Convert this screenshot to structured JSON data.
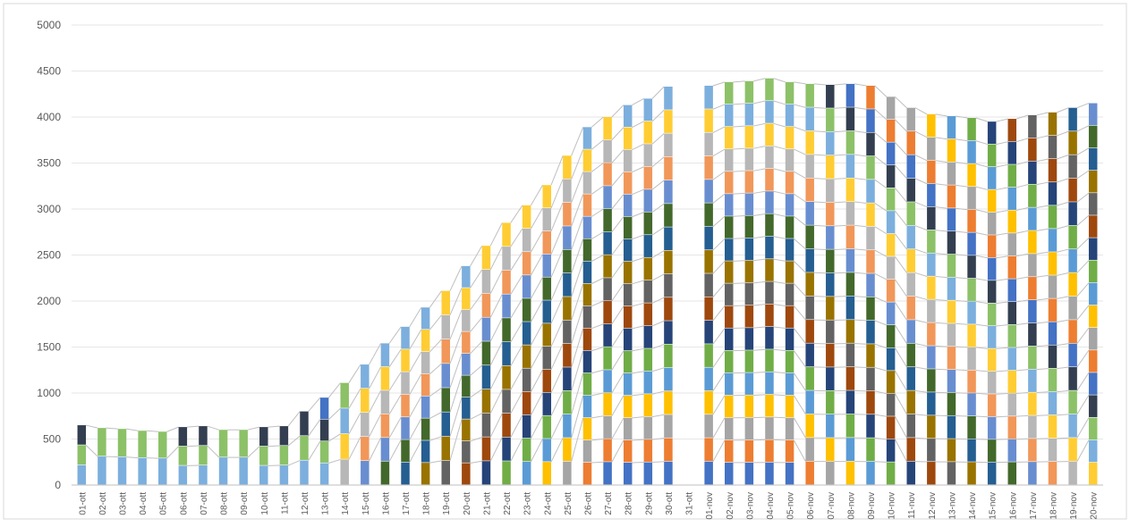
{
  "chart_data": {
    "type": "bar",
    "stacked": true,
    "title": "",
    "xlabel": "",
    "ylabel": "",
    "ylim": [
      0,
      5000
    ],
    "yticks": [
      0,
      500,
      1000,
      1500,
      2000,
      2500,
      3000,
      3500,
      4000,
      4500,
      5000
    ],
    "grid": true,
    "legend": "none",
    "connector_lines": true,
    "categories": [
      "01-ott",
      "02-ott",
      "03-ott",
      "04-ott",
      "05-ott",
      "06-ott",
      "07-ott",
      "08-ott",
      "09-ott",
      "10-ott",
      "11-ott",
      "12-ott",
      "13-ott",
      "14-ott",
      "15-ott",
      "16-ott",
      "17-ott",
      "18-ott",
      "19-ott",
      "20-ott",
      "21-ott",
      "22-ott",
      "23-ott",
      "24-ott",
      "25-ott",
      "26-ott",
      "27-ott",
      "28-ott",
      "29-ott",
      "30-ott",
      "31-ott",
      "01-nov",
      "02-nov",
      "03-nov",
      "04-nov",
      "05-nov",
      "06-nov",
      "07-nov",
      "08-nov",
      "09-nov",
      "10-nov",
      "11-nov",
      "12-nov",
      "13-nov",
      "14-nov",
      "15-nov",
      "16-nov",
      "17-nov",
      "18-nov",
      "19-nov",
      "20-nov"
    ],
    "totals": [
      650,
      620,
      610,
      590,
      580,
      630,
      640,
      600,
      600,
      630,
      640,
      800,
      950,
      1110,
      1310,
      1540,
      1720,
      1930,
      2110,
      2380,
      2600,
      2850,
      3040,
      3260,
      3580,
      3890,
      4000,
      4130,
      4200,
      4330,
      0,
      4340,
      4380,
      4390,
      4420,
      4380,
      4360,
      4350,
      4360,
      4340,
      4220,
      4100,
      4030,
      4010,
      3990,
      3950,
      3980,
      4020,
      4050,
      4100,
      4150
    ],
    "group_start_index": [
      16,
      16,
      16,
      16,
      16,
      16,
      16,
      16,
      16,
      16,
      16,
      16,
      16,
      14,
      12,
      11,
      10,
      9,
      8,
      7,
      6,
      5,
      4,
      3,
      2,
      1,
      0,
      0,
      0,
      0,
      0,
      0,
      0,
      0,
      0,
      0,
      1,
      2,
      3,
      4,
      5,
      6,
      7,
      8,
      9,
      10,
      11,
      12,
      13,
      14,
      15
    ],
    "segment_value": 250,
    "colors": [
      "#4472C4",
      "#ED7D31",
      "#A5A5A5",
      "#FFC000",
      "#5B9BD5",
      "#70AD47",
      "#264478",
      "#9E480E",
      "#636363",
      "#997300",
      "#255E91",
      "#43682B",
      "#698ED0",
      "#F1975A",
      "#B7B7B7",
      "#FFCD33",
      "#7CAFDD",
      "#8CC168",
      "#333F50"
    ],
    "connector_color": "#BFBFBF"
  }
}
